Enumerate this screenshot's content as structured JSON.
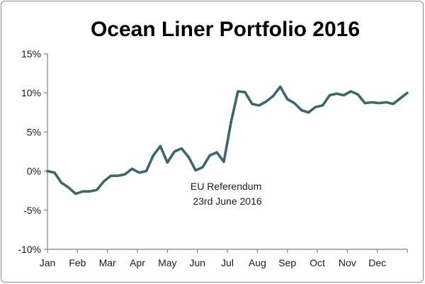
{
  "chart_data": {
    "type": "line",
    "title": "Ocean Liner Portfolio 2016",
    "xlabel": "",
    "ylabel": "",
    "ylim": [
      -10,
      15
    ],
    "y_ticks": [
      "15%",
      "10%",
      "5%",
      "0%",
      "-5%",
      "-10%"
    ],
    "y_tick_values": [
      15,
      10,
      5,
      0,
      -5,
      -10
    ],
    "x_tick_labels": [
      "Jan",
      "Feb",
      "Mar",
      "Apr",
      "May",
      "Jun",
      "Jul",
      "Aug",
      "Sep",
      "Oct",
      "Nov",
      "Dec"
    ],
    "x_range": [
      1,
      52
    ],
    "grid": false,
    "line_color": "#3b6769",
    "annotation": {
      "lines": [
        "EU Referendum",
        "23rd June 2016"
      ],
      "x_week": 26.5,
      "y_value": -2.4
    },
    "series": [
      {
        "name": "",
        "x": [
          1,
          2,
          3,
          4,
          5,
          6,
          7,
          8,
          9,
          10,
          11,
          12,
          13,
          14,
          15,
          16,
          17,
          18,
          19,
          20,
          21,
          22,
          23,
          24,
          25,
          26,
          27,
          28,
          29,
          30,
          31,
          32,
          33,
          34,
          35,
          36,
          37,
          38,
          39,
          40,
          41,
          42,
          43,
          44,
          45,
          46,
          47,
          48,
          49,
          50,
          51,
          52
        ],
        "values": [
          0.0,
          -0.2,
          -1.5,
          -2.1,
          -2.9,
          -2.6,
          -2.6,
          -2.4,
          -1.3,
          -0.6,
          -0.6,
          -0.4,
          0.3,
          -0.2,
          0.0,
          2.0,
          3.2,
          1.1,
          2.5,
          2.9,
          1.8,
          0.1,
          0.5,
          2.0,
          2.4,
          1.2,
          6.2,
          10.2,
          10.1,
          8.6,
          8.4,
          8.9,
          9.6,
          10.8,
          9.2,
          8.7,
          7.8,
          7.5,
          8.2,
          8.4,
          9.7,
          9.9,
          9.7,
          10.2,
          9.8,
          8.7,
          8.8,
          8.7,
          8.8,
          8.6,
          9.3,
          10.0
        ]
      }
    ]
  }
}
